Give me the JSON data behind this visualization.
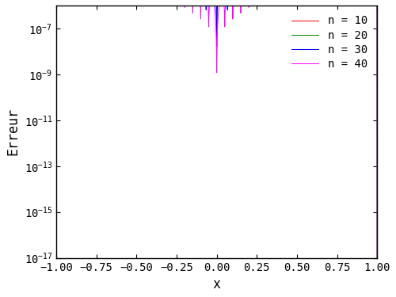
{
  "title": "",
  "xlabel": "x",
  "ylabel": "Erreur",
  "xlim": [
    -1,
    1
  ],
  "ylim_log": [
    -17,
    -6
  ],
  "n_values": [
    10,
    20,
    30,
    40
  ],
  "colors": [
    "#ff0000",
    "#008000",
    "#0000ff",
    "#ff00ff"
  ],
  "num_points": 2000,
  "legend_labels": [
    "n = 10",
    "n = 20",
    "n = 30",
    "n = 40"
  ],
  "background_color": "#ffffff",
  "font_family": "monospace"
}
